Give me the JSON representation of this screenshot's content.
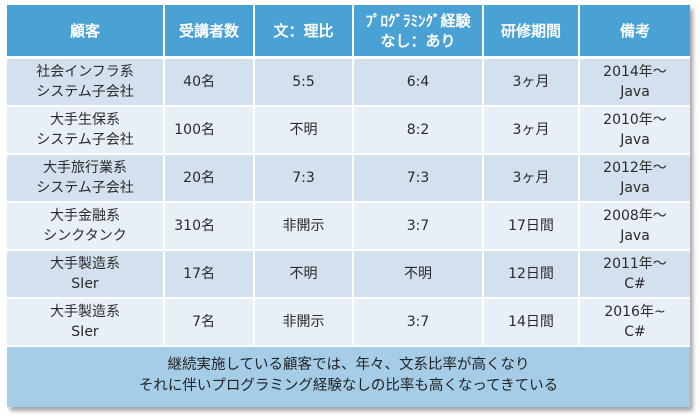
{
  "table": {
    "headers": {
      "client": "顧客",
      "students": "受講者数",
      "ratio": "文：理比",
      "exp_line1": "ﾌﾟﾛｸﾞﾗﾐﾝｸﾞ経験",
      "exp_line2": "なし：あり",
      "period": "研修期間",
      "notes": "備考"
    },
    "rows": [
      {
        "client_1": "社会インフラ系",
        "client_2": "システム子会社",
        "students": "40名",
        "ratio": "5:5",
        "exp": "6:4",
        "period": "3ヶ月",
        "notes_1": "2014年～",
        "notes_2": "Java"
      },
      {
        "client_1": "大手生保系",
        "client_2": "システム子会社",
        "students": "100名",
        "ratio": "不明",
        "exp": "8:2",
        "period": "3ヶ月",
        "notes_1": "2010年～",
        "notes_2": "Java"
      },
      {
        "client_1": "大手旅行業系",
        "client_2": "システム子会社",
        "students": "20名",
        "ratio": "7:3",
        "exp": "7:3",
        "period": "3ヶ月",
        "notes_1": "2012年～",
        "notes_2": "Java"
      },
      {
        "client_1": "大手金融系",
        "client_2": "シンクタンク",
        "students": "310名",
        "ratio": "非開示",
        "exp": "3:7",
        "period": "17日間",
        "notes_1": "2008年～",
        "notes_2": "Java"
      },
      {
        "client_1": "大手製造系",
        "client_2": "SIer",
        "students": "17名",
        "ratio": "不明",
        "exp": "不明",
        "period": "12日間",
        "notes_1": "2011年～",
        "notes_2": "C#"
      },
      {
        "client_1": "大手製造系",
        "client_2": "SIer",
        "students": "7名",
        "ratio": "非開示",
        "exp": "3:7",
        "period": "14日間",
        "notes_1": "2016年~",
        "notes_2": "C#"
      }
    ]
  },
  "footer": {
    "line1": "継続実施している顧客では、年々、文系比率が高くなり",
    "line2": "それに伴いプログラミング経験なしの比率も高くなってきている"
  }
}
